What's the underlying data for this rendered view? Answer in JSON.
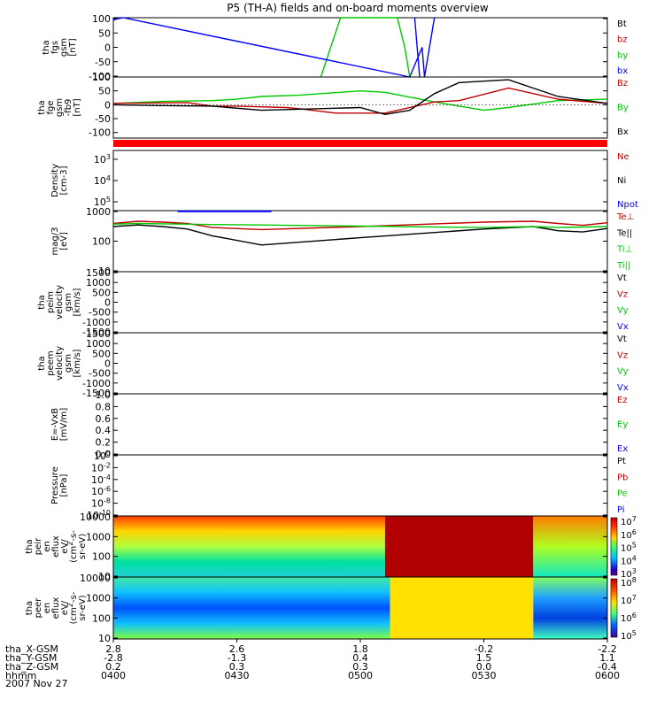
{
  "title": "P5 (TH-A) fields and on-board moments overview",
  "date_label": "2007 Nov 27",
  "colors": {
    "black": "#000000",
    "red": "#c00000",
    "green": "#00c800",
    "blue": "#0000ff",
    "bright_red": "#ff0000"
  },
  "chart_data": [
    {
      "type": "line",
      "id": "fgs",
      "ylabel_lines": [
        "tha",
        "fgs",
        "gsm",
        "[nT]"
      ],
      "yticks": [
        "100",
        "50",
        "0",
        "-50",
        "-100"
      ],
      "ylim": [
        -100,
        100
      ],
      "legend": [
        {
          "name": "Bt",
          "color": "black"
        },
        {
          "name": "bz",
          "color": "red"
        },
        {
          "name": "by",
          "color": "green"
        },
        {
          "name": "bx",
          "color": "blue"
        }
      ],
      "series": [
        {
          "name": "by",
          "color": "green",
          "x": [
            0.42,
            0.44,
            0.46,
            0.575,
            0.59,
            0.6
          ],
          "y": [
            -100,
            0,
            100,
            100,
            0,
            -100
          ]
        },
        {
          "name": "bx",
          "color": "blue",
          "x": [
            0.0,
            0.01,
            0.02,
            0.6,
            0.625,
            0.63,
            0.65
          ],
          "y": [
            92,
            97,
            100,
            -100,
            0,
            -100,
            100
          ]
        },
        {
          "name": "bx-fall",
          "color": "blue",
          "x": [
            0.61,
            0.62
          ],
          "y": [
            100,
            -100
          ]
        }
      ]
    },
    {
      "type": "line",
      "id": "fge",
      "ylabel_lines": [
        "tha",
        "fge",
        "gsm",
        "-fb9",
        "[nT]"
      ],
      "yticks": [
        "100",
        "50",
        "0",
        "-50",
        "-100"
      ],
      "ylim": [
        -120,
        100
      ],
      "legend": [
        {
          "name": "Bz",
          "color": "red"
        },
        {
          "name": "By",
          "color": "green"
        },
        {
          "name": "Bx",
          "color": "black"
        }
      ],
      "series": [
        {
          "name": "By",
          "color": "green",
          "x": [
            0,
            0.1,
            0.2,
            0.25,
            0.3,
            0.38,
            0.5,
            0.55,
            0.65,
            0.75,
            0.8,
            0.9,
            1.0
          ],
          "y": [
            5,
            12,
            15,
            20,
            30,
            35,
            50,
            45,
            10,
            -20,
            -10,
            15,
            20
          ]
        },
        {
          "name": "Bz",
          "color": "red",
          "x": [
            0,
            0.15,
            0.2,
            0.25,
            0.35,
            0.38,
            0.45,
            0.55,
            0.65,
            0.7,
            0.8,
            0.9,
            1.0
          ],
          "y": [
            5,
            8,
            -5,
            -5,
            -10,
            -15,
            -30,
            -30,
            10,
            15,
            60,
            20,
            5
          ]
        },
        {
          "name": "Bx",
          "color": "black",
          "x": [
            0,
            0.1,
            0.2,
            0.3,
            0.4,
            0.5,
            0.55,
            0.6,
            0.65,
            0.7,
            0.8,
            0.9,
            1.0
          ],
          "y": [
            0,
            -3,
            -5,
            -20,
            -15,
            -10,
            -35,
            -20,
            40,
            80,
            90,
            30,
            5
          ]
        }
      ]
    },
    {
      "type": "line",
      "id": "density",
      "ylabel_lines": [
        "Density",
        "[cm-3]"
      ],
      "yticks": [
        "10^3",
        "10^4",
        "10^5"
      ],
      "legend": [
        {
          "name": "Ne",
          "color": "red"
        },
        {
          "name": "Ni",
          "color": "black"
        },
        {
          "name": "Npot",
          "color": "blue"
        }
      ],
      "series": []
    },
    {
      "type": "line",
      "id": "temp",
      "ylabel_lines": [
        "mag/3",
        "[eV]"
      ],
      "yticks": [
        "1000",
        "100",
        "10"
      ],
      "ylog": true,
      "ylim": [
        10,
        1000
      ],
      "legend": [
        {
          "name": "Te⊥",
          "color": "red"
        },
        {
          "name": "Te||",
          "color": "black"
        },
        {
          "name": "Ti⊥",
          "color": "green"
        },
        {
          "name": "Ti||",
          "color": "green"
        }
      ],
      "series": [
        {
          "name": "Npot",
          "color": "blue",
          "x": [
            0.13,
            0.32
          ],
          "y": [
            950,
            950
          ]
        },
        {
          "name": "Te⊥",
          "color": "red",
          "x": [
            0,
            0.05,
            0.1,
            0.15,
            0.2,
            0.3,
            0.5,
            0.75,
            0.85,
            0.9,
            0.95,
            1.0
          ],
          "y": [
            380,
            450,
            420,
            380,
            280,
            240,
            300,
            420,
            450,
            380,
            330,
            400
          ]
        },
        {
          "name": "Te||",
          "color": "black",
          "x": [
            0,
            0.05,
            0.1,
            0.15,
            0.2,
            0.3,
            0.5,
            0.75,
            0.85,
            0.9,
            0.95,
            1.0
          ],
          "y": [
            300,
            340,
            300,
            250,
            150,
            75,
            130,
            250,
            300,
            220,
            200,
            260
          ]
        },
        {
          "name": "Ti⊥",
          "color": "green",
          "x": [
            0,
            0.05,
            0.1,
            0.2,
            0.3,
            0.35,
            0.5,
            0.75,
            0.85,
            0.9,
            1.0
          ],
          "y": [
            360,
            380,
            370,
            350,
            340,
            330,
            310,
            280,
            300,
            280,
            300
          ]
        }
      ]
    },
    {
      "type": "line",
      "id": "peim",
      "ylabel_lines": [
        "tha",
        "peim",
        "velocity",
        "gsm",
        "[km/s]"
      ],
      "yticks": [
        "1500",
        "1000",
        "500",
        "0",
        "-500",
        "-1000",
        "-1500"
      ],
      "legend": [
        {
          "name": "Vt",
          "color": "black"
        },
        {
          "name": "Vz",
          "color": "red"
        },
        {
          "name": "Vy",
          "color": "green"
        },
        {
          "name": "Vx",
          "color": "blue"
        }
      ],
      "series": []
    },
    {
      "type": "line",
      "id": "peem",
      "ylabel_lines": [
        "tha",
        "peem",
        "velocity",
        "gsm",
        "[km/s]"
      ],
      "yticks": [
        "1500",
        "1000",
        "500",
        "0",
        "-500",
        "-1000",
        "-1500"
      ],
      "legend": [
        {
          "name": "Vt",
          "color": "black"
        },
        {
          "name": "Vz",
          "color": "red"
        },
        {
          "name": "Vy",
          "color": "green"
        },
        {
          "name": "Vx",
          "color": "blue"
        }
      ],
      "series": []
    },
    {
      "type": "line",
      "id": "exb",
      "ylabel_lines": [
        "E=-VxB",
        "[mV/m]"
      ],
      "yticks": [
        "1.0",
        "0.8",
        "0.6",
        "0.4",
        "0.2",
        "0.0"
      ],
      "legend": [
        {
          "name": "Ez",
          "color": "red"
        },
        {
          "name": "Ey",
          "color": "green"
        },
        {
          "name": "Ex",
          "color": "blue"
        }
      ],
      "series": []
    },
    {
      "type": "line",
      "id": "pressure",
      "ylabel_lines": [
        "Pressure",
        "[nPa]"
      ],
      "yticks": [
        "10^0",
        "10^-2",
        "10^-4",
        "10^-6",
        "10^-8",
        "10^-10"
      ],
      "legend": [
        {
          "name": "Pt",
          "color": "black"
        },
        {
          "name": "Pb",
          "color": "red"
        },
        {
          "name": "Pe",
          "color": "green"
        },
        {
          "name": "Pi",
          "color": "blue"
        }
      ],
      "series": []
    },
    {
      "type": "heatmap",
      "id": "peir",
      "ylabel_lines": [
        "tha",
        "peir",
        "en",
        "eflux",
        "eV/",
        "(cm^2-s-",
        "sr-eV)"
      ],
      "yticks": [
        "10000",
        "1000",
        "100",
        "10"
      ],
      "colorbar_ticks": [
        "10^7",
        "10^6",
        "10^5",
        "10^4",
        "10^3"
      ],
      "segments": [
        {
          "x": [
            0.0,
            0.55
          ],
          "bands": [
            "#ff3a00",
            "#ffd400",
            "#b0ff40",
            "#00e0a0",
            "#20d0d8"
          ]
        },
        {
          "x": [
            0.55,
            0.85
          ],
          "bands": [
            "#b00000"
          ]
        },
        {
          "x": [
            0.85,
            1.0
          ],
          "bands": [
            "#ff7a00",
            "#b0ff20",
            "#10e8c0"
          ]
        }
      ]
    },
    {
      "type": "heatmap",
      "id": "peer",
      "ylabel_lines": [
        "tha",
        "peer",
        "en",
        "eflux",
        "eV/",
        "(cm^2-s-",
        "sr-eV)"
      ],
      "yticks": [
        "10000",
        "1000",
        "100",
        "10"
      ],
      "colorbar_ticks": [
        "10^8",
        "10^7",
        "10^6",
        "10^5"
      ],
      "segments": [
        {
          "x": [
            0.0,
            0.56
          ],
          "bands": [
            "#40e8a0",
            "#10c0ff",
            "#0050ff",
            "#10c0ff",
            "#80ff40"
          ]
        },
        {
          "x": [
            0.56,
            0.85
          ],
          "bands": [
            "#ffe000"
          ]
        },
        {
          "x": [
            0.85,
            1.0
          ],
          "bands": [
            "#80ff60",
            "#20a0ff",
            "#0040e0",
            "#40ffc0"
          ]
        }
      ]
    }
  ],
  "x_axis": {
    "tick_positions": [
      0.0,
      0.25,
      0.5,
      0.75,
      1.0
    ],
    "rows": [
      {
        "label": "tha_X-GSM",
        "values": [
          "2.8",
          "2.6",
          "1.8",
          "-0.2",
          "-2.2"
        ]
      },
      {
        "label": "tha_Y-GSM",
        "values": [
          "-2.8",
          "-1.3",
          "0.4",
          "1.5",
          "1.1"
        ]
      },
      {
        "label": "tha_Z-GSM",
        "values": [
          "0.2",
          "0.3",
          "0.3",
          "0.0",
          "-0.4"
        ]
      },
      {
        "label": "hhmm",
        "values": [
          "0400",
          "0430",
          "0500",
          "0530",
          "0600"
        ]
      }
    ]
  }
}
